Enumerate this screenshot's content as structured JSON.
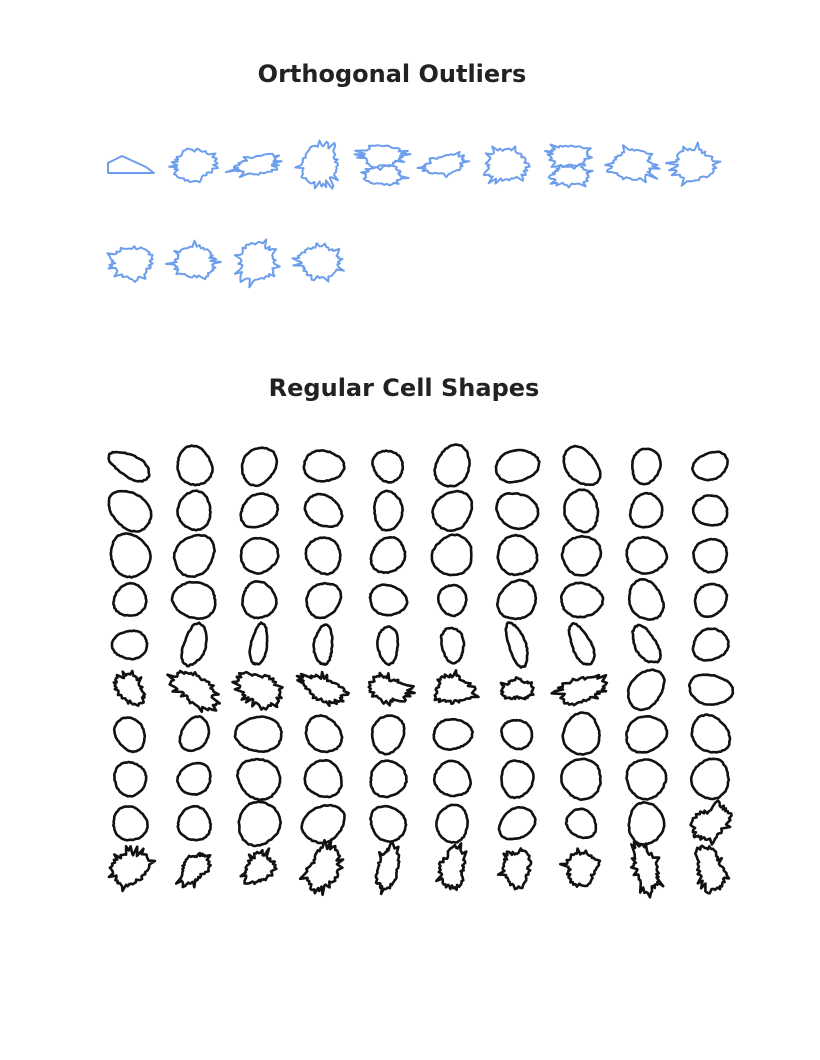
{
  "figure": {
    "outliers_title": "Orthogonal Outliers",
    "regular_title": "Regular Cell Shapes"
  },
  "colors": {
    "outlier_stroke": "#6d9eeb",
    "regular_stroke": "#111111",
    "background": "#ffffff"
  },
  "outliers": {
    "columns": 10,
    "count": 14,
    "shapes": [
      {
        "kind": "flat-wedge"
      },
      {
        "kind": "spiky-blob"
      },
      {
        "kind": "spiky-elongated"
      },
      {
        "kind": "spiky-round"
      },
      {
        "kind": "stacked-pair"
      },
      {
        "kind": "spiky-elongated"
      },
      {
        "kind": "spiky-blob"
      },
      {
        "kind": "stacked-pair"
      },
      {
        "kind": "spiky-blob"
      },
      {
        "kind": "spiky-blob"
      },
      {
        "kind": "spiky-blob"
      },
      {
        "kind": "spiky-blob"
      },
      {
        "kind": "spiky-round"
      },
      {
        "kind": "spiky-blob"
      }
    ]
  },
  "regular": {
    "rows": 10,
    "columns": 10,
    "count": 100
  }
}
